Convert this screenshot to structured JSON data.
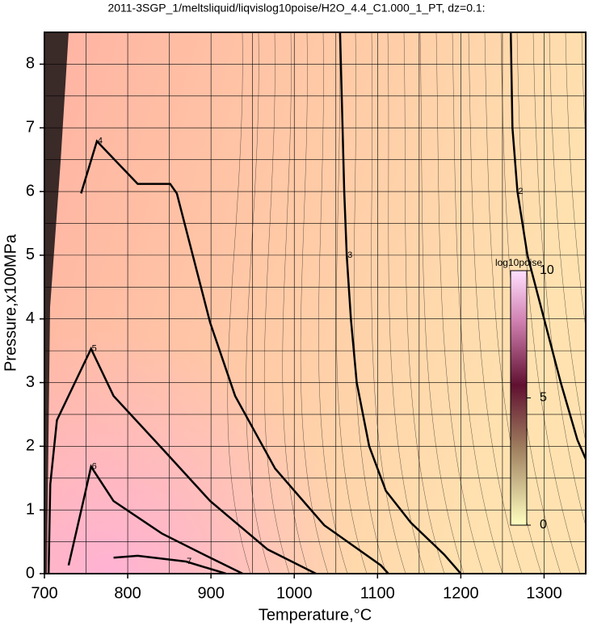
{
  "chart_data": {
    "type": "contour",
    "title": "2011-3SGP_1/meltsliquid/liqvislog10poise/H2O_4.4_C1.000_1_PT, dz=0.1:",
    "x_label": "Temperature,°C",
    "y_label": "Pressure,x100MPa",
    "xlim": [
      700,
      1350
    ],
    "ylim": [
      0,
      8.5
    ],
    "xticks": [
      700,
      800,
      900,
      1000,
      1100,
      1200,
      1300
    ],
    "yticks": [
      0,
      1,
      2,
      3,
      4,
      5,
      6,
      7,
      8
    ],
    "xminor": [
      750,
      850,
      950,
      1050,
      1150,
      1250
    ],
    "yminor": [
      0.5,
      1.5,
      2.5,
      3.5,
      4.5,
      5.5,
      6.5,
      7.5
    ],
    "grid": true,
    "colorbar": {
      "label": "log10poise",
      "lim": [
        0,
        10
      ],
      "ticks": [
        0,
        5,
        10
      ]
    },
    "series": [
      {
        "level": 2,
        "color": "#000",
        "x": [
          1260,
          1262,
          1268,
          1280,
          1300,
          1320,
          1340,
          1350
        ],
        "y": [
          8.5,
          7,
          6,
          5,
          4,
          3,
          2.1,
          1.8
        ]
      },
      {
        "level": 3,
        "color": "#000",
        "x": [
          1055,
          1058,
          1060,
          1063,
          1068,
          1075,
          1090,
          1110,
          1140,
          1180,
          1200
        ],
        "y": [
          8.5,
          7,
          6,
          5,
          4,
          3,
          2,
          1.3,
          0.8,
          0.3,
          0
        ]
      },
      {
        "level": 4,
        "color": "#000",
        "x": [
          744,
          763,
          812,
          851,
          859,
          899,
          929,
          977,
          1036,
          1104,
          1113
        ],
        "y": [
          5.97,
          6.79,
          6.12,
          6.12,
          5.97,
          3.94,
          2.79,
          1.65,
          0.76,
          0.13,
          0
        ]
      },
      {
        "level": 5,
        "color": "#000",
        "x": [
          705,
          707,
          715,
          756,
          783,
          841,
          899,
          968,
          1026
        ],
        "y": [
          0,
          1.4,
          2.41,
          3.53,
          2.79,
          1.97,
          1.14,
          0.38,
          0
        ]
      },
      {
        "level": 6,
        "color": "#000",
        "x": [
          729,
          749,
          756,
          783,
          841,
          899,
          938
        ],
        "y": [
          0.13,
          1.27,
          1.68,
          1.14,
          0.63,
          0.25,
          0
        ]
      },
      {
        "level": 7,
        "color": "#000",
        "x": [
          783,
          812,
          870,
          918
        ],
        "y": [
          0.25,
          0.28,
          0.19,
          0
        ]
      }
    ]
  }
}
